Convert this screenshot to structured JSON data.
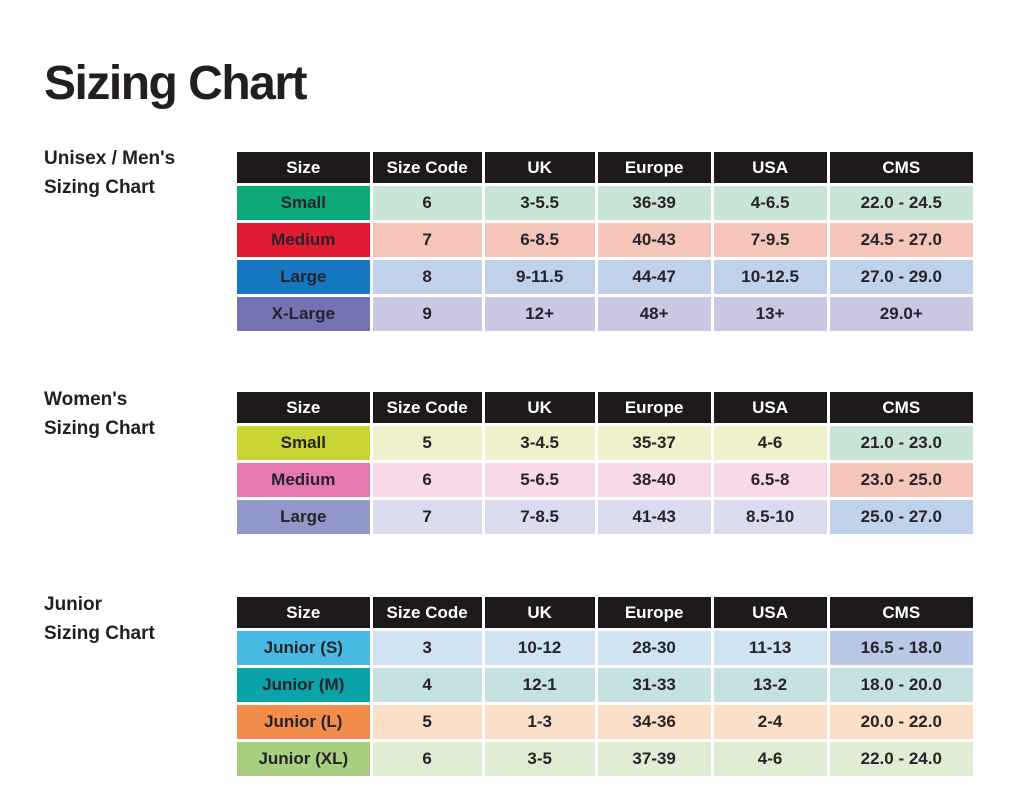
{
  "page": {
    "title": "Sizing Chart"
  },
  "colors": {
    "header_bg": "#1e1a1b",
    "header_text": "#ffffff",
    "cell_text": "#26232a",
    "page_bg": "#ffffff"
  },
  "columns": [
    "Size",
    "Size Code",
    "UK",
    "Europe",
    "USA",
    "CMS"
  ],
  "tables": [
    {
      "name": "unisex-mens",
      "label": "Unisex / Men's\nSizing Chart",
      "rows": [
        {
          "size": "Small",
          "size_bg": "#0fa878",
          "row_bg": "#c9e5d6",
          "cms_bg": "#c9e5d6",
          "cells": [
            "6",
            "3-5.5",
            "36-39",
            "4-6.5",
            "22.0 - 24.5"
          ]
        },
        {
          "size": "Medium",
          "size_bg": "#e11b31",
          "row_bg": "#f5c5b9",
          "cms_bg": "#f5c5b9",
          "cells": [
            "7",
            "6-8.5",
            "40-43",
            "7-9.5",
            "24.5 - 27.0"
          ]
        },
        {
          "size": "Large",
          "size_bg": "#1778c2",
          "row_bg": "#bfd2ea",
          "cms_bg": "#bfd2ea",
          "cells": [
            "8",
            "9-11.5",
            "44-47",
            "10-12.5",
            "27.0 - 29.0"
          ]
        },
        {
          "size": "X-Large",
          "size_bg": "#7473b2",
          "row_bg": "#cbc8e4",
          "cms_bg": "#cbc8e4",
          "cells": [
            "9",
            "12+",
            "48+",
            "13+",
            "29.0+"
          ]
        }
      ]
    },
    {
      "name": "womens",
      "label": "Women's\nSizing Chart",
      "rows": [
        {
          "size": "Small",
          "size_bg": "#c9d534",
          "row_bg": "#eef1c9",
          "cms_bg": "#c9e5d6",
          "cells": [
            "5",
            "3-4.5",
            "35-37",
            "4-6",
            "21.0 - 23.0"
          ]
        },
        {
          "size": "Medium",
          "size_bg": "#e878b0",
          "row_bg": "#f8d9e9",
          "cms_bg": "#f5c5b9",
          "cells": [
            "6",
            "5-6.5",
            "38-40",
            "6.5-8",
            "23.0 - 25.0"
          ]
        },
        {
          "size": "Large",
          "size_bg": "#9197c9",
          "row_bg": "#dbdbee",
          "cms_bg": "#bfd2ea",
          "cells": [
            "7",
            "7-8.5",
            "41-43",
            "8.5-10",
            "25.0 - 27.0"
          ]
        }
      ]
    },
    {
      "name": "junior",
      "label": "Junior\nSizing Chart",
      "rows": [
        {
          "size": "Junior (S)",
          "size_bg": "#47b9e3",
          "row_bg": "#cfe3f0",
          "cms_bg": "#b9c8e6",
          "cells": [
            "3",
            "10-12",
            "28-30",
            "11-13",
            "16.5 - 18.0"
          ]
        },
        {
          "size": "Junior (M)",
          "size_bg": "#09a3a8",
          "row_bg": "#c6e1e2",
          "cms_bg": "#c6e1e2",
          "cells": [
            "4",
            "12-1",
            "31-33",
            "13-2",
            "18.0 - 20.0"
          ]
        },
        {
          "size": "Junior (L)",
          "size_bg": "#f28c4b",
          "row_bg": "#fbdfc9",
          "cms_bg": "#fbdfc9",
          "cells": [
            "5",
            "1-3",
            "34-36",
            "2-4",
            "20.0 - 22.0"
          ]
        },
        {
          "size": "Junior (XL)",
          "size_bg": "#a8cf80",
          "row_bg": "#e0ecd4",
          "cms_bg": "#e0ecd4",
          "cells": [
            "6",
            "3-5",
            "37-39",
            "4-6",
            "22.0 - 24.0"
          ]
        }
      ]
    }
  ]
}
